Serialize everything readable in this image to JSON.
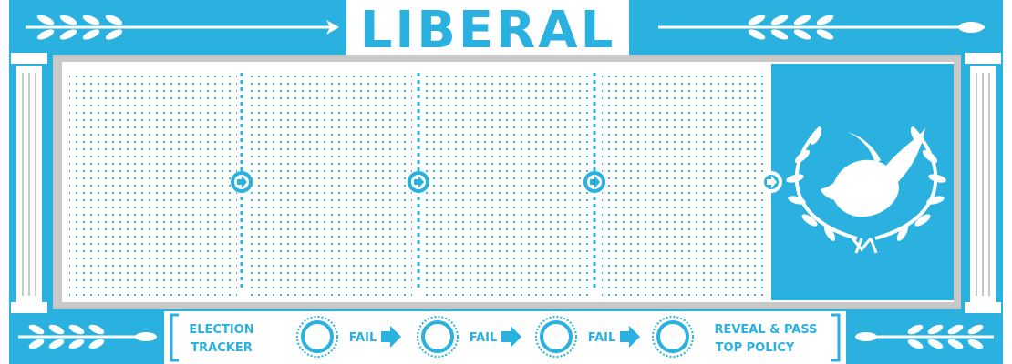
{
  "board": {
    "title": "LIBERAL",
    "colors": {
      "accent": "#2ab1e0",
      "light": "#d8eef7",
      "white": "#ffffff",
      "grey": "#c8c8c8"
    },
    "policy_slots": [
      {
        "index": 1,
        "filled": false
      },
      {
        "index": 2,
        "filled": false
      },
      {
        "index": 3,
        "filled": false
      },
      {
        "index": 4,
        "filled": false
      },
      {
        "index": 5,
        "filled": false,
        "emblem": "dove-laurel-icon"
      }
    ]
  },
  "election_tracker": {
    "label_line1": "ELECTION",
    "label_line2": "TRACKER",
    "steps": [
      {
        "label": "FAIL",
        "active": false
      },
      {
        "label": "FAIL",
        "active": false
      },
      {
        "label": "FAIL",
        "active": false
      }
    ],
    "final_line1": "REVEAL & PASS",
    "final_line2": "TOP POLICY"
  }
}
